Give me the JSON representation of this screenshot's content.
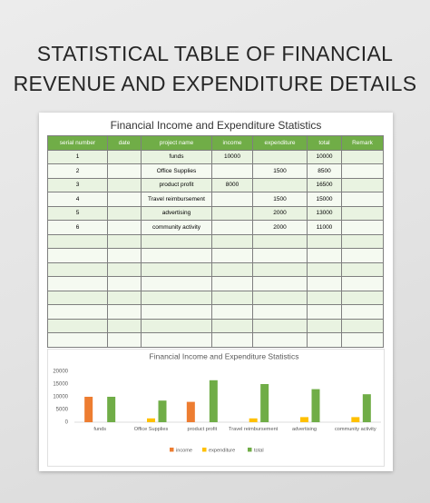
{
  "header": {
    "title_lines": [
      "STATISTICAL TABLE OF FINANCIAL",
      "REVENUE AND EXPENDITURE DETAILS"
    ]
  },
  "table": {
    "title": "Financial Income and Expenditure Statistics",
    "columns": [
      "serial number",
      "date",
      "project name",
      "income",
      "expenditure",
      "total",
      "Remark"
    ],
    "rows": [
      [
        1,
        null,
        "funds",
        10000,
        null,
        10000,
        null
      ],
      [
        2,
        null,
        "Office Supplies",
        null,
        1500,
        8500,
        null
      ],
      [
        3,
        null,
        "product profit",
        8000,
        null,
        16500,
        null
      ],
      [
        4,
        null,
        "Travel reimbursement",
        null,
        1500,
        15000,
        null
      ],
      [
        5,
        null,
        "advertising",
        null,
        2000,
        13000,
        null
      ],
      [
        6,
        null,
        "community activity",
        null,
        2000,
        11000,
        null
      ]
    ]
  },
  "chart_data": {
    "type": "bar",
    "title": "Financial Income and Expenditure Statistics",
    "categories": [
      "funds",
      "Office Supplies",
      "product profit",
      "Travel reimbursement",
      "advertising",
      "community activity"
    ],
    "series": [
      {
        "name": "income",
        "color": "#ed7d31",
        "values": [
          10000,
          null,
          8000,
          null,
          null,
          null
        ]
      },
      {
        "name": "expenditure",
        "color": "#ffc000",
        "values": [
          null,
          1500,
          null,
          1500,
          2000,
          2000
        ]
      },
      {
        "name": "total",
        "color": "#70ad47",
        "values": [
          10000,
          8500,
          16500,
          15000,
          13000,
          11000
        ]
      }
    ],
    "ylim": [
      0,
      20000
    ],
    "yticks": [
      0,
      5000,
      10000,
      15000,
      20000
    ],
    "grid": false,
    "legend": "bottom"
  }
}
